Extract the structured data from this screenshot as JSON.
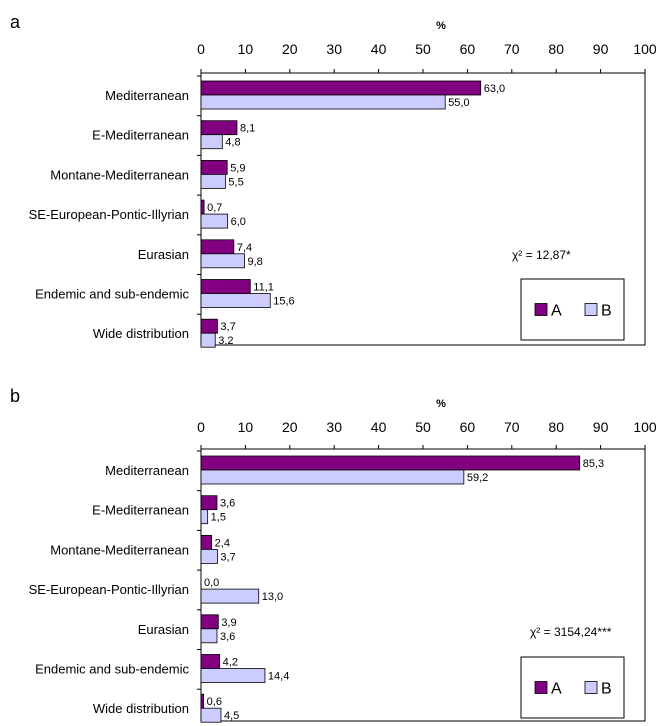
{
  "colors": {
    "A": "#800080",
    "B": "#ccccff",
    "frame": "#000000"
  },
  "chart_data": [
    {
      "type": "bar",
      "orientation": "horizontal",
      "panel": "a",
      "axis_label": "%",
      "xlim": [
        0,
        100
      ],
      "ticks": [
        "0",
        "10",
        "20",
        "30",
        "40",
        "50",
        "60",
        "70",
        "80",
        "90",
        "100"
      ],
      "categories": [
        "Mediterranean",
        "E-Mediterranean",
        "Montane-Mediterranean",
        "SE-European-Pontic-Illyrian",
        "Eurasian",
        "Endemic and sub-endemic",
        "Wide distribution"
      ],
      "series": [
        {
          "name": "A",
          "values": [
            63.0,
            8.1,
            5.9,
            0.7,
            7.4,
            11.1,
            3.7
          ],
          "labels": [
            "63,0",
            "8,1",
            "5,9",
            "0,7",
            "7,4",
            "11,1",
            "3,7"
          ]
        },
        {
          "name": "B",
          "values": [
            55.0,
            4.8,
            5.5,
            6.0,
            9.8,
            15.6,
            3.2
          ],
          "labels": [
            "55,0",
            "4,8",
            "5,5",
            "6,0",
            "9,8",
            "15,6",
            "3,2"
          ]
        }
      ],
      "annotation": "χ² = 12,87*",
      "legend": "bottom-right",
      "grid": false
    },
    {
      "type": "bar",
      "orientation": "horizontal",
      "panel": "b",
      "axis_label": "%",
      "xlim": [
        0,
        100
      ],
      "ticks": [
        "0",
        "10",
        "20",
        "30",
        "40",
        "50",
        "60",
        "70",
        "80",
        "90",
        "100"
      ],
      "categories": [
        "Mediterranean",
        "E-Mediterranean",
        "Montane-Mediterranean",
        "SE-European-Pontic-Illyrian",
        "Eurasian",
        "Endemic and sub-endemic",
        "Wide distribution"
      ],
      "series": [
        {
          "name": "A",
          "values": [
            85.3,
            3.6,
            2.4,
            0.0,
            3.9,
            4.2,
            0.6
          ],
          "labels": [
            "85,3",
            "3,6",
            "2,4",
            "0,0",
            "3,9",
            "4,2",
            "0,6"
          ]
        },
        {
          "name": "B",
          "values": [
            59.2,
            1.5,
            3.7,
            13.0,
            3.6,
            14.4,
            4.5
          ],
          "labels": [
            "59,2",
            "1,5",
            "3,7",
            "13,0",
            "3,6",
            "14,4",
            "4,5"
          ]
        }
      ],
      "annotation": "χ² = 3154,24***",
      "legend": "bottom-right",
      "grid": false
    }
  ]
}
